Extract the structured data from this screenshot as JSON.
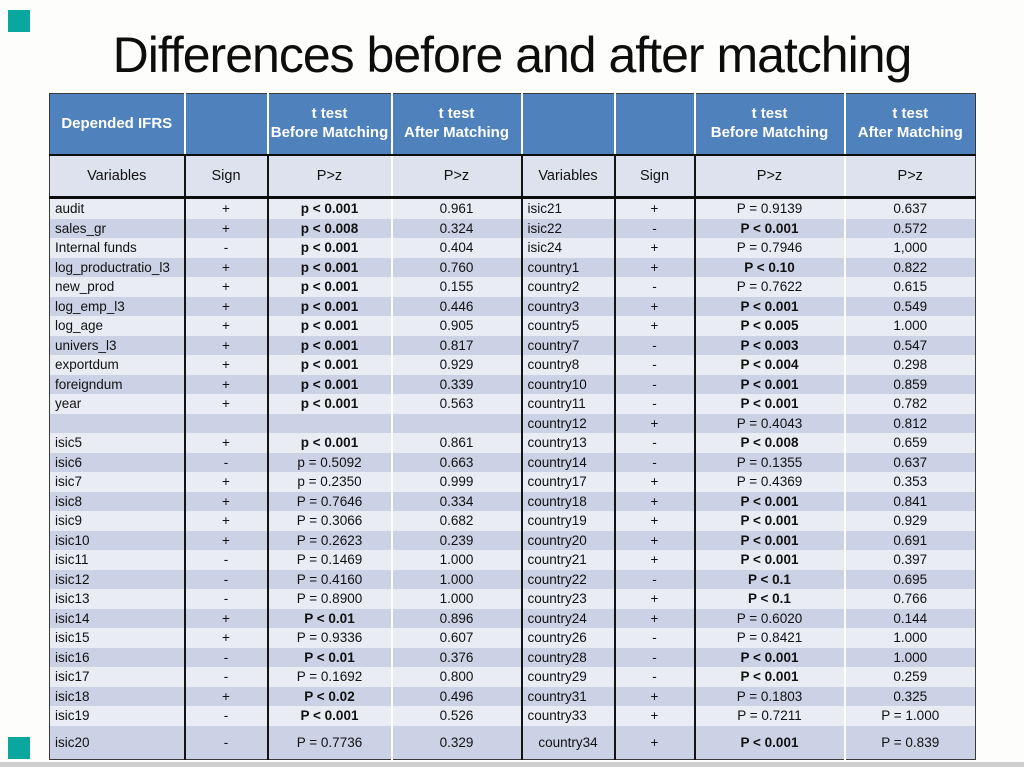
{
  "slide": {
    "title": "Differences before and after matching",
    "accent_color": "#0aa79e",
    "header_blue": "#4f81bd",
    "subheader_bg": "#dee2ee",
    "row_light": "#eaecf4",
    "row_dark": "#ccd2e6"
  },
  "table": {
    "group_headers": [
      {
        "line1": "Depended IFRS"
      },
      {},
      {
        "line1": "t test",
        "line2": "Before Matching"
      },
      {
        "line1": "t test",
        "line2": "After Matching"
      },
      {},
      {},
      {
        "line1": "t test",
        "line2": "Before Matching"
      },
      {
        "line1": "t test",
        "line2": "After Matching"
      }
    ],
    "sub_headers": [
      "Variables",
      "Sign",
      "P>z",
      "P>z",
      "Variables",
      "Sign",
      "P>z",
      "P>z"
    ],
    "rows": [
      {
        "left": [
          "audit",
          "+",
          "p < 0.001",
          "0.961"
        ],
        "left_bold": true,
        "right": [
          "isic21",
          "+",
          "P = 0.9139",
          "0.637"
        ],
        "right_bold": false
      },
      {
        "left": [
          "sales_gr",
          "+",
          "p < 0.008",
          "0.324"
        ],
        "left_bold": true,
        "right": [
          "isic22",
          "-",
          "P < 0.001",
          "0.572"
        ],
        "right_bold": true
      },
      {
        "left": [
          "Internal funds",
          "-",
          "p < 0.001",
          "0.404"
        ],
        "left_bold": true,
        "right": [
          "isic24",
          "+",
          "P = 0.7946",
          "1,000"
        ],
        "right_bold": false
      },
      {
        "left": [
          "log_productratio_l3",
          "+",
          "p < 0.001",
          "0.760"
        ],
        "left_bold": true,
        "right": [
          "country1",
          "+",
          "P < 0.10",
          "0.822"
        ],
        "right_bold": true
      },
      {
        "left": [
          "new_prod",
          "+",
          "p < 0.001",
          "0.155"
        ],
        "left_bold": true,
        "right": [
          "country2",
          "-",
          "P = 0.7622",
          "0.615"
        ],
        "right_bold": false
      },
      {
        "left": [
          "log_emp_l3",
          "+",
          "p < 0.001",
          "0.446"
        ],
        "left_bold": true,
        "right": [
          "country3",
          "+",
          "P < 0.001",
          "0.549"
        ],
        "right_bold": true
      },
      {
        "left": [
          "log_age",
          "+",
          "p < 0.001",
          "0.905"
        ],
        "left_bold": true,
        "right": [
          "country5",
          "+",
          "P < 0.005",
          "1.000"
        ],
        "right_bold": true
      },
      {
        "left": [
          "univers_l3",
          "+",
          "p < 0.001",
          "0.817"
        ],
        "left_bold": true,
        "right": [
          "country7",
          "-",
          "P < 0.003",
          "0.547"
        ],
        "right_bold": true
      },
      {
        "left": [
          "exportdum",
          "+",
          "p < 0.001",
          "0.929"
        ],
        "left_bold": true,
        "right": [
          "country8",
          "-",
          "P < 0.004",
          "0.298"
        ],
        "right_bold": true
      },
      {
        "left": [
          "foreigndum",
          "+",
          "p < 0.001",
          "0.339"
        ],
        "left_bold": true,
        "right": [
          "country10",
          "-",
          "P < 0.001",
          "0.859"
        ],
        "right_bold": true
      },
      {
        "left": [
          "year",
          "+",
          "p < 0.001",
          "0.563"
        ],
        "left_bold": true,
        "right": [
          "country11",
          "-",
          "P < 0.001",
          "0.782"
        ],
        "right_bold": true
      },
      {
        "left": [
          "",
          "",
          "",
          ""
        ],
        "left_bold": false,
        "right": [
          "country12",
          "+",
          "P = 0.4043",
          "0.812"
        ],
        "right_bold": false
      },
      {
        "left": [
          "isic5",
          "+",
          "p < 0.001",
          "0.861"
        ],
        "left_bold": true,
        "right": [
          "country13",
          "-",
          "P < 0.008",
          "0.659"
        ],
        "right_bold": true
      },
      {
        "left": [
          "isic6",
          "-",
          "p = 0.5092",
          "0.663"
        ],
        "left_bold": false,
        "right": [
          "country14",
          "-",
          "P = 0.1355",
          "0.637"
        ],
        "right_bold": false
      },
      {
        "left": [
          "isic7",
          "+",
          "p = 0.2350",
          "0.999"
        ],
        "left_bold": false,
        "right": [
          "country17",
          "+",
          "P = 0.4369",
          "0.353"
        ],
        "right_bold": false
      },
      {
        "left": [
          "isic8",
          "+",
          "P = 0.7646",
          "0.334"
        ],
        "left_bold": false,
        "right": [
          "country18",
          "+",
          "P < 0.001",
          "0.841"
        ],
        "right_bold": true
      },
      {
        "left": [
          "isic9",
          "+",
          "P = 0.3066",
          "0.682"
        ],
        "left_bold": false,
        "right": [
          "country19",
          "+",
          "P < 0.001",
          "0.929"
        ],
        "right_bold": true
      },
      {
        "left": [
          "isic10",
          "+",
          "P = 0.2623",
          "0.239"
        ],
        "left_bold": false,
        "right": [
          "country20",
          "+",
          "P < 0.001",
          "0.691"
        ],
        "right_bold": true
      },
      {
        "left": [
          "isic11",
          "-",
          "P = 0.1469",
          "1.000"
        ],
        "left_bold": false,
        "right": [
          "country21",
          "+",
          "P < 0.001",
          "0.397"
        ],
        "right_bold": true
      },
      {
        "left": [
          "isic12",
          "-",
          "P = 0.4160",
          "1.000"
        ],
        "left_bold": false,
        "right": [
          "country22",
          "-",
          "P < 0.1",
          "0.695"
        ],
        "right_bold": true
      },
      {
        "left": [
          "isic13",
          "-",
          "P = 0.8900",
          "1.000"
        ],
        "left_bold": false,
        "right": [
          "country23",
          "+",
          "P < 0.1",
          "0.766"
        ],
        "right_bold": true
      },
      {
        "left": [
          "isic14",
          "+",
          "P < 0.01",
          "0.896"
        ],
        "left_bold": true,
        "right": [
          "country24",
          "+",
          "P = 0.6020",
          "0.144"
        ],
        "right_bold": false
      },
      {
        "left": [
          "isic15",
          "+",
          "P = 0.9336",
          "0.607"
        ],
        "left_bold": false,
        "right": [
          "country26",
          "-",
          "P = 0.8421",
          "1.000"
        ],
        "right_bold": false
      },
      {
        "left": [
          "isic16",
          "-",
          "P < 0.01",
          "0.376"
        ],
        "left_bold": true,
        "right": [
          "country28",
          "-",
          "P < 0.001",
          "1.000"
        ],
        "right_bold": true
      },
      {
        "left": [
          "isic17",
          "-",
          "P = 0.1692",
          "0.800"
        ],
        "left_bold": false,
        "right": [
          "country29",
          "-",
          "P < 0.001",
          "0.259"
        ],
        "right_bold": true
      },
      {
        "left": [
          "isic18",
          "+",
          "P < 0.02",
          "0.496"
        ],
        "left_bold": true,
        "right": [
          "country31",
          "+",
          "P = 0.1803",
          "0.325"
        ],
        "right_bold": false
      },
      {
        "left": [
          "isic19",
          "-",
          "P < 0.001",
          "0.526"
        ],
        "left_bold": true,
        "right": [
          "country33",
          "+",
          "P = 0.7211",
          "P = 1.000"
        ],
        "right_bold": false
      },
      {
        "left": [
          "isic20",
          "-",
          "P = 0.7736",
          "0.329"
        ],
        "left_bold": false,
        "right": [
          "country34",
          "+",
          "P < 0.001",
          "P = 0.839"
        ],
        "right_bold": true,
        "right_var_center": true
      }
    ]
  }
}
